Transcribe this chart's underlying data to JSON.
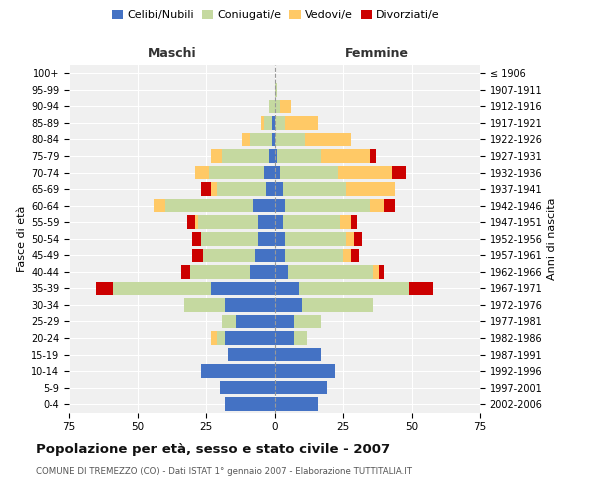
{
  "age_groups": [
    "0-4",
    "5-9",
    "10-14",
    "15-19",
    "20-24",
    "25-29",
    "30-34",
    "35-39",
    "40-44",
    "45-49",
    "50-54",
    "55-59",
    "60-64",
    "65-69",
    "70-74",
    "75-79",
    "80-84",
    "85-89",
    "90-94",
    "95-99",
    "100+"
  ],
  "birth_years": [
    "2002-2006",
    "1997-2001",
    "1992-1996",
    "1987-1991",
    "1982-1986",
    "1977-1981",
    "1972-1976",
    "1967-1971",
    "1962-1966",
    "1957-1961",
    "1952-1956",
    "1947-1951",
    "1942-1946",
    "1937-1941",
    "1932-1936",
    "1927-1931",
    "1922-1926",
    "1917-1921",
    "1912-1916",
    "1907-1911",
    "≤ 1906"
  ],
  "maschi": {
    "celibi": [
      18,
      20,
      27,
      17,
      18,
      14,
      18,
      23,
      9,
      7,
      6,
      6,
      8,
      3,
      4,
      2,
      1,
      1,
      0,
      0,
      0
    ],
    "coniugati": [
      0,
      0,
      0,
      0,
      3,
      5,
      15,
      36,
      22,
      19,
      21,
      22,
      32,
      18,
      20,
      17,
      8,
      3,
      2,
      0,
      0
    ],
    "vedovi": [
      0,
      0,
      0,
      0,
      2,
      0,
      0,
      0,
      0,
      0,
      0,
      1,
      4,
      2,
      5,
      4,
      3,
      1,
      0,
      0,
      0
    ],
    "divorziati": [
      0,
      0,
      0,
      0,
      0,
      0,
      0,
      6,
      3,
      4,
      3,
      3,
      0,
      4,
      0,
      0,
      0,
      0,
      0,
      0,
      0
    ]
  },
  "femmine": {
    "nubili": [
      16,
      19,
      22,
      17,
      7,
      7,
      10,
      9,
      5,
      4,
      4,
      3,
      4,
      3,
      2,
      1,
      0,
      0,
      0,
      0,
      0
    ],
    "coniugate": [
      0,
      0,
      0,
      0,
      5,
      10,
      26,
      40,
      31,
      21,
      22,
      21,
      31,
      23,
      21,
      16,
      11,
      4,
      2,
      1,
      0
    ],
    "vedove": [
      0,
      0,
      0,
      0,
      0,
      0,
      0,
      0,
      2,
      3,
      3,
      4,
      5,
      18,
      20,
      18,
      17,
      12,
      4,
      0,
      0
    ],
    "divorziate": [
      0,
      0,
      0,
      0,
      0,
      0,
      0,
      9,
      2,
      3,
      3,
      2,
      4,
      0,
      5,
      2,
      0,
      0,
      0,
      0,
      0
    ]
  },
  "colors": {
    "celibi": "#4472c4",
    "coniugati": "#c5d9a0",
    "vedovi": "#ffc966",
    "divorziati": "#cc0000"
  },
  "xlim": 75,
  "title": "Popolazione per età, sesso e stato civile - 2007",
  "subtitle": "COMUNE DI TREMEZZO (CO) - Dati ISTAT 1° gennaio 2007 - Elaborazione TUTTITALIA.IT",
  "ylabel_left": "Fasce di età",
  "ylabel_right": "Anni di nascita",
  "xlabel_left": "Maschi",
  "xlabel_right": "Femmine",
  "plot_bg": "#f0f0f0",
  "fig_bg": "#ffffff",
  "grid_color": "#ffffff"
}
